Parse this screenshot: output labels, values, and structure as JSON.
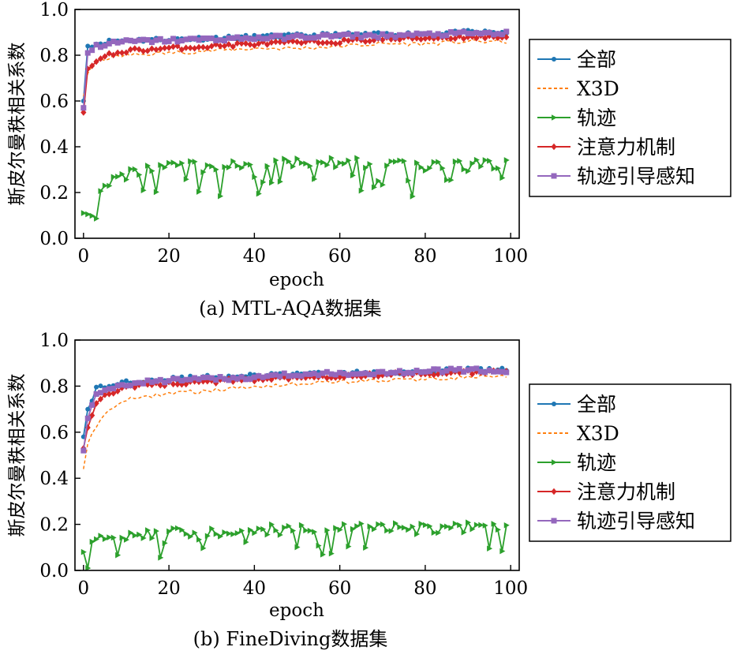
{
  "figure": {
    "captions": [
      "(a) MTL-AQA数据集",
      "(b) FineDiving数据集"
    ]
  },
  "chart_data": [
    {
      "type": "line",
      "title": "(a) MTL-AQA数据集",
      "xlabel": "epoch",
      "ylabel": "斯皮尔曼秩相关系数",
      "xlim": [
        -2,
        102
      ],
      "ylim": [
        0,
        1.0
      ],
      "xticks": [
        0,
        20,
        40,
        60,
        80,
        100
      ],
      "yticks": [
        0.0,
        0.2,
        0.4,
        0.6,
        0.8,
        1.0
      ],
      "legend_position": "right",
      "series": [
        {
          "name": "全部",
          "color": "#1f77b4",
          "style": "solid",
          "marker": "circle",
          "anchors": [
            [
              0,
              0.6
            ],
            [
              1,
              0.84
            ],
            [
              3,
              0.85
            ],
            [
              6,
              0.86
            ],
            [
              10,
              0.865
            ],
            [
              20,
              0.87
            ],
            [
              30,
              0.875
            ],
            [
              40,
              0.88
            ],
            [
              50,
              0.885
            ],
            [
              60,
              0.89
            ],
            [
              70,
              0.89
            ],
            [
              80,
              0.895
            ],
            [
              90,
              0.9
            ],
            [
              99,
              0.9
            ]
          ]
        },
        {
          "name": "X3D",
          "color": "#ff7f0e",
          "style": "dashed",
          "marker": "none",
          "anchors": [
            [
              0,
              0.62
            ],
            [
              1,
              0.72
            ],
            [
              3,
              0.77
            ],
            [
              6,
              0.79
            ],
            [
              10,
              0.8
            ],
            [
              20,
              0.81
            ],
            [
              30,
              0.82
            ],
            [
              40,
              0.83
            ],
            [
              50,
              0.83
            ],
            [
              60,
              0.84
            ],
            [
              70,
              0.85
            ],
            [
              80,
              0.85
            ],
            [
              90,
              0.86
            ],
            [
              99,
              0.86
            ]
          ]
        },
        {
          "name": "轨迹",
          "color": "#2ca02c",
          "style": "solid",
          "marker": "triangle-right",
          "anchors": [
            [
              0,
              0.11
            ],
            [
              2,
              0.1
            ],
            [
              3,
              0.16
            ],
            [
              5,
              0.23
            ],
            [
              7,
              0.26
            ],
            [
              10,
              0.28
            ],
            [
              15,
              0.3
            ],
            [
              20,
              0.31
            ],
            [
              30,
              0.315
            ],
            [
              40,
              0.32
            ],
            [
              50,
              0.325
            ],
            [
              60,
              0.33
            ],
            [
              70,
              0.33
            ],
            [
              80,
              0.32
            ],
            [
              90,
              0.315
            ],
            [
              99,
              0.33
            ]
          ]
        },
        {
          "name": "注意力机制",
          "color": "#d62728",
          "style": "solid",
          "marker": "diamond",
          "anchors": [
            [
              0,
              0.55
            ],
            [
              1,
              0.74
            ],
            [
              3,
              0.77
            ],
            [
              6,
              0.8
            ],
            [
              10,
              0.82
            ],
            [
              20,
              0.83
            ],
            [
              30,
              0.84
            ],
            [
              40,
              0.85
            ],
            [
              50,
              0.855
            ],
            [
              60,
              0.86
            ],
            [
              70,
              0.87
            ],
            [
              80,
              0.875
            ],
            [
              90,
              0.88
            ],
            [
              99,
              0.88
            ]
          ]
        },
        {
          "name": "轨迹引导感知",
          "color": "#9467bd",
          "style": "solid",
          "marker": "square",
          "anchors": [
            [
              0,
              0.57
            ],
            [
              1,
              0.81
            ],
            [
              3,
              0.84
            ],
            [
              6,
              0.85
            ],
            [
              10,
              0.86
            ],
            [
              20,
              0.865
            ],
            [
              30,
              0.87
            ],
            [
              40,
              0.875
            ],
            [
              50,
              0.88
            ],
            [
              60,
              0.885
            ],
            [
              70,
              0.885
            ],
            [
              80,
              0.89
            ],
            [
              90,
              0.895
            ],
            [
              99,
              0.895
            ]
          ]
        }
      ]
    },
    {
      "type": "line",
      "title": "(b) FineDiving数据集",
      "xlabel": "epoch",
      "ylabel": "斯皮尔曼秩相关系数",
      "xlim": [
        -2,
        102
      ],
      "ylim": [
        0,
        1.0
      ],
      "xticks": [
        0,
        20,
        40,
        60,
        80,
        100
      ],
      "yticks": [
        0.0,
        0.2,
        0.4,
        0.6,
        0.8,
        1.0
      ],
      "legend_position": "right",
      "series": [
        {
          "name": "全部",
          "color": "#1f77b4",
          "style": "solid",
          "marker": "circle",
          "anchors": [
            [
              0,
              0.58
            ],
            [
              1,
              0.7
            ],
            [
              3,
              0.79
            ],
            [
              6,
              0.8
            ],
            [
              10,
              0.82
            ],
            [
              20,
              0.83
            ],
            [
              30,
              0.84
            ],
            [
              40,
              0.845
            ],
            [
              50,
              0.85
            ],
            [
              60,
              0.855
            ],
            [
              70,
              0.86
            ],
            [
              80,
              0.865
            ],
            [
              90,
              0.87
            ],
            [
              99,
              0.87
            ]
          ]
        },
        {
          "name": "X3D",
          "color": "#ff7f0e",
          "style": "dashed",
          "marker": "none",
          "anchors": [
            [
              0,
              0.44
            ],
            [
              1,
              0.55
            ],
            [
              3,
              0.63
            ],
            [
              6,
              0.7
            ],
            [
              10,
              0.74
            ],
            [
              20,
              0.77
            ],
            [
              30,
              0.78
            ],
            [
              40,
              0.8
            ],
            [
              50,
              0.81
            ],
            [
              60,
              0.82
            ],
            [
              70,
              0.825
            ],
            [
              80,
              0.83
            ],
            [
              90,
              0.84
            ],
            [
              99,
              0.84
            ]
          ]
        },
        {
          "name": "轨迹",
          "color": "#2ca02c",
          "style": "solid",
          "marker": "triangle-right",
          "anchors": [
            [
              0,
              0.08
            ],
            [
              1,
              0.01
            ],
            [
              2,
              0.12
            ],
            [
              5,
              0.13
            ],
            [
              10,
              0.15
            ],
            [
              20,
              0.16
            ],
            [
              30,
              0.17
            ],
            [
              40,
              0.175
            ],
            [
              50,
              0.18
            ],
            [
              60,
              0.18
            ],
            [
              70,
              0.18
            ],
            [
              80,
              0.18
            ],
            [
              90,
              0.185
            ],
            [
              99,
              0.19
            ]
          ]
        },
        {
          "name": "注意力机制",
          "color": "#d62728",
          "style": "solid",
          "marker": "diamond",
          "anchors": [
            [
              0,
              0.53
            ],
            [
              1,
              0.62
            ],
            [
              3,
              0.72
            ],
            [
              6,
              0.77
            ],
            [
              10,
              0.8
            ],
            [
              20,
              0.81
            ],
            [
              30,
              0.82
            ],
            [
              40,
              0.83
            ],
            [
              50,
              0.84
            ],
            [
              60,
              0.845
            ],
            [
              70,
              0.85
            ],
            [
              80,
              0.855
            ],
            [
              90,
              0.86
            ],
            [
              99,
              0.86
            ]
          ]
        },
        {
          "name": "轨迹引导感知",
          "color": "#9467bd",
          "style": "solid",
          "marker": "square",
          "anchors": [
            [
              0,
              0.52
            ],
            [
              1,
              0.66
            ],
            [
              3,
              0.76
            ],
            [
              6,
              0.79
            ],
            [
              10,
              0.81
            ],
            [
              20,
              0.825
            ],
            [
              30,
              0.83
            ],
            [
              40,
              0.84
            ],
            [
              50,
              0.85
            ],
            [
              60,
              0.855
            ],
            [
              70,
              0.86
            ],
            [
              80,
              0.865
            ],
            [
              90,
              0.87
            ],
            [
              99,
              0.865
            ]
          ]
        }
      ]
    }
  ]
}
